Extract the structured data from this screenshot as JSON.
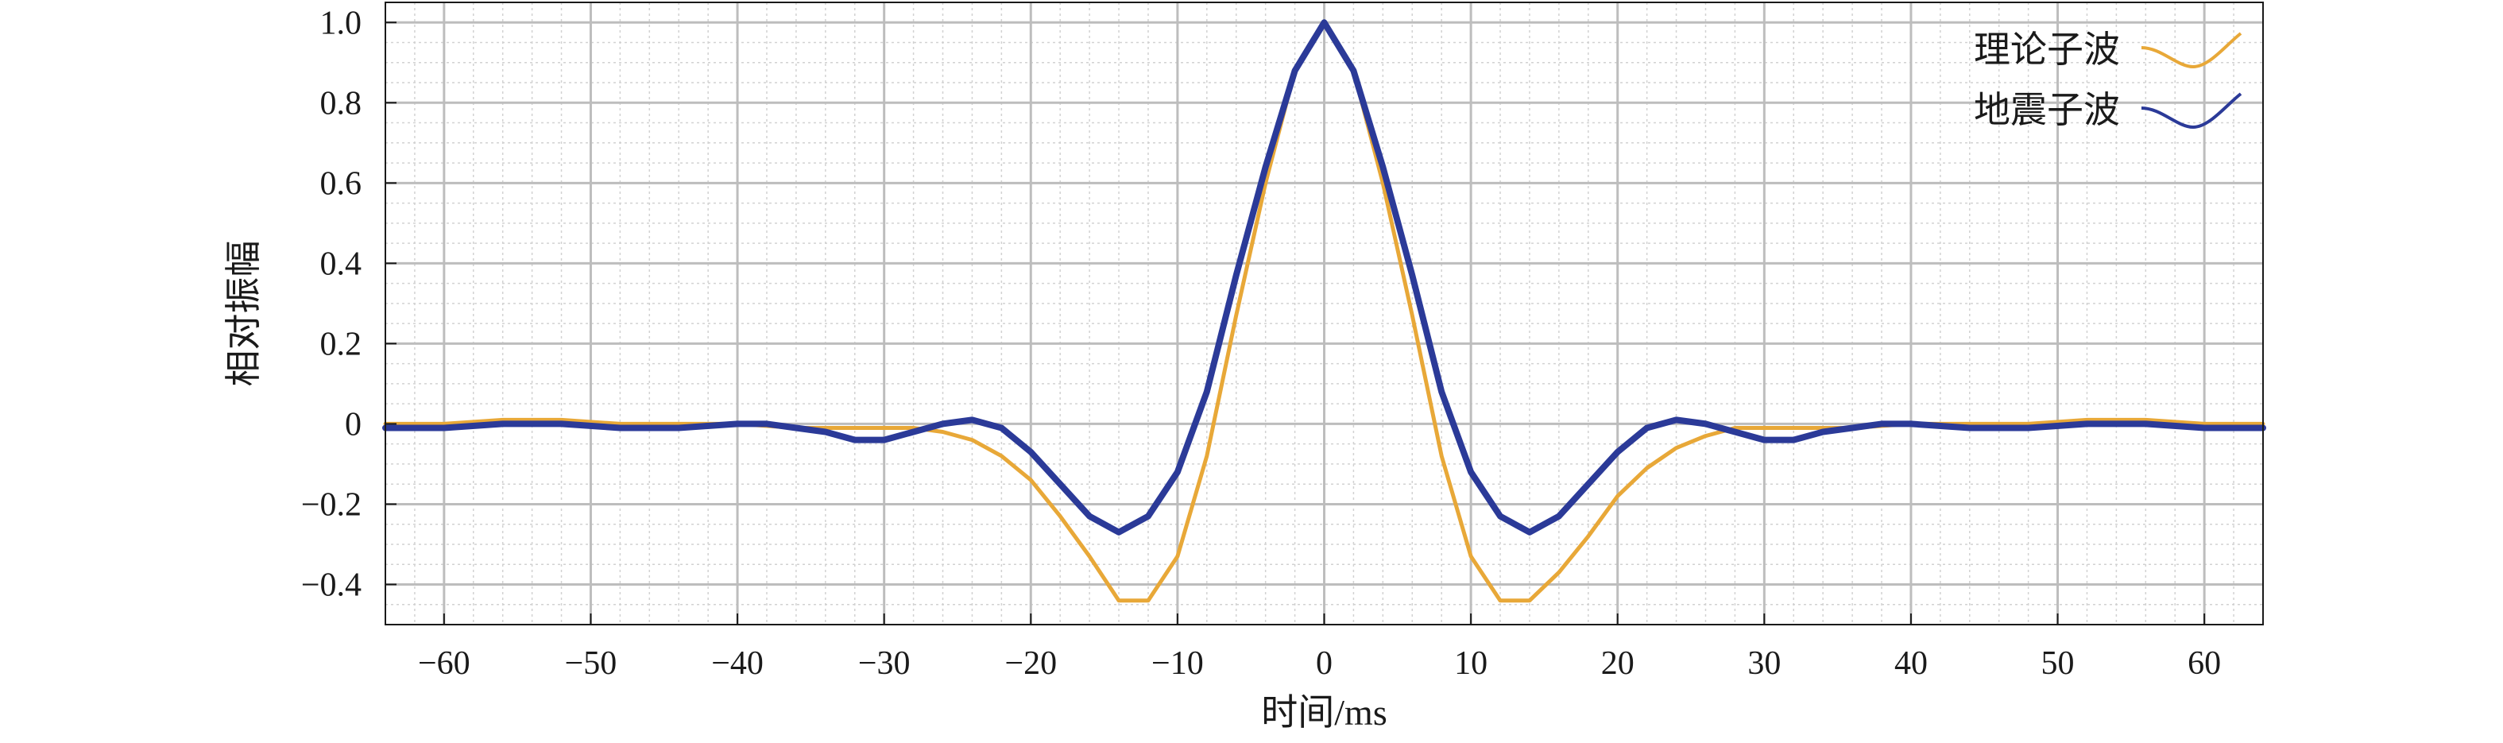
{
  "chart_data": {
    "type": "line",
    "xlabel": "时间/ms",
    "ylabel": "相对振幅",
    "xlim": [
      -64,
      64
    ],
    "ylim": [
      -0.5,
      1.05
    ],
    "x_ticks": [
      -60,
      -50,
      -40,
      -30,
      -20,
      -10,
      0,
      10,
      20,
      30,
      40,
      50,
      60
    ],
    "x_tick_labels": [
      "−60",
      "−50",
      "−40",
      "−30",
      "−20",
      "−10",
      "0",
      "10",
      "20",
      "30",
      "40",
      "50",
      "60"
    ],
    "y_ticks": [
      1.0,
      0.8,
      0.6,
      0.4,
      0.2,
      0,
      -0.2,
      -0.4
    ],
    "y_tick_labels": [
      "1.0",
      "0.8",
      "0.6",
      "0.4",
      "0.2",
      "0",
      "−0.2",
      "−0.4"
    ],
    "grid": true,
    "minor_grid": true,
    "legend_position": "top-right",
    "series": [
      {
        "name": "理论子波",
        "color": "#e8a838",
        "x": [
          -64,
          -60,
          -56,
          -52,
          -48,
          -44,
          -40,
          -36,
          -32,
          -28,
          -26,
          -24,
          -22,
          -20,
          -18,
          -16,
          -14,
          -12,
          -10,
          -8,
          -6,
          -4,
          -2,
          0,
          2,
          4,
          6,
          8,
          10,
          12,
          14,
          16,
          18,
          20,
          22,
          24,
          26,
          28,
          32,
          36,
          40,
          44,
          48,
          52,
          56,
          60,
          64
        ],
        "values": [
          0,
          0,
          0.01,
          0.01,
          0,
          0,
          0,
          -0.01,
          -0.01,
          -0.01,
          -0.02,
          -0.04,
          -0.08,
          -0.14,
          -0.23,
          -0.33,
          -0.44,
          -0.44,
          -0.33,
          -0.08,
          0.27,
          0.6,
          0.88,
          1.0,
          0.88,
          0.6,
          0.27,
          -0.08,
          -0.33,
          -0.44,
          -0.44,
          -0.37,
          -0.28,
          -0.18,
          -0.11,
          -0.06,
          -0.03,
          -0.01,
          -0.01,
          -0.01,
          0,
          0,
          0,
          0.01,
          0.01,
          0,
          0
        ]
      },
      {
        "name": "地震子波",
        "color": "#2b3a98",
        "x": [
          -64,
          -60,
          -56,
          -52,
          -48,
          -44,
          -40,
          -38,
          -36,
          -34,
          -32,
          -30,
          -28,
          -26,
          -24,
          -22,
          -20,
          -18,
          -16,
          -14,
          -12,
          -10,
          -8,
          -6,
          -4,
          -2,
          0,
          2,
          4,
          6,
          8,
          10,
          12,
          14,
          16,
          18,
          20,
          22,
          24,
          26,
          28,
          30,
          32,
          34,
          36,
          38,
          40,
          44,
          48,
          52,
          56,
          60,
          64
        ],
        "values": [
          -0.01,
          -0.01,
          0,
          0,
          -0.01,
          -0.01,
          0,
          0,
          -0.01,
          -0.02,
          -0.04,
          -0.04,
          -0.02,
          0,
          0.01,
          -0.01,
          -0.07,
          -0.15,
          -0.23,
          -0.27,
          -0.23,
          -0.12,
          0.08,
          0.37,
          0.64,
          0.88,
          1.0,
          0.88,
          0.64,
          0.37,
          0.08,
          -0.12,
          -0.23,
          -0.27,
          -0.23,
          -0.15,
          -0.07,
          -0.01,
          0.01,
          0,
          -0.02,
          -0.04,
          -0.04,
          -0.02,
          -0.01,
          0,
          0,
          -0.01,
          -0.01,
          0,
          0,
          -0.01,
          -0.01
        ]
      }
    ]
  }
}
